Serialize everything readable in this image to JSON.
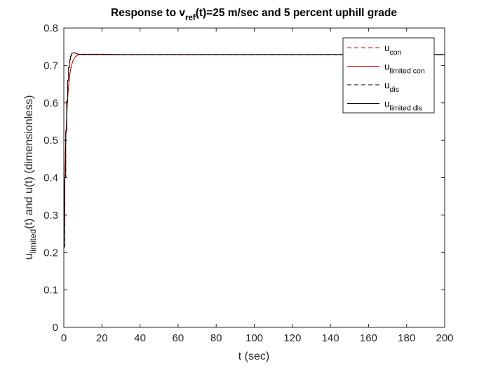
{
  "chart_data": {
    "type": "line",
    "title": {
      "prefix": "Response to v",
      "sub": "ref",
      "suffix": "(t)=25 m/sec and  5 percent uphill grade"
    },
    "xlabel": "t (sec)",
    "ylabel": {
      "prefix": "u",
      "sub": "limited",
      "suffix": "(t) and u(t) (dimensionless)"
    },
    "xlim": [
      0,
      200
    ],
    "ylim": [
      0,
      0.8
    ],
    "xticks": [
      0,
      20,
      40,
      60,
      80,
      100,
      120,
      140,
      160,
      180,
      200
    ],
    "xtick_labels": [
      "0",
      "20",
      "40",
      "60",
      "80",
      "100",
      "120",
      "140",
      "160",
      "180",
      "200"
    ],
    "yticks": [
      0,
      0.1,
      0.2,
      0.3,
      0.4,
      0.5,
      0.6,
      0.7,
      0.8
    ],
    "ytick_labels": [
      "0",
      "0.1",
      "0.2",
      "0.3",
      "0.4",
      "0.5",
      "0.6",
      "0.7",
      "0.8"
    ],
    "grid": false,
    "legend_position": "top-right",
    "series": [
      {
        "name": {
          "base": "u",
          "sub": "con"
        },
        "color": "#cc0000",
        "dash": "dashed",
        "x": [
          0,
          0.5,
          1,
          1.5,
          2,
          2.5,
          3,
          3.5,
          4,
          5,
          6,
          7,
          8,
          10,
          12,
          15,
          20,
          30,
          200
        ],
        "y": [
          0.255,
          0.4,
          0.5,
          0.565,
          0.61,
          0.645,
          0.67,
          0.687,
          0.7,
          0.715,
          0.723,
          0.727,
          0.729,
          0.73,
          0.73,
          0.73,
          0.73,
          0.729,
          0.729
        ]
      },
      {
        "name": {
          "base": "u",
          "sub": "limited con"
        },
        "color": "#cc0000",
        "dash": "solid",
        "x": [
          0,
          0.5,
          1,
          1.5,
          2,
          2.5,
          3,
          3.5,
          4,
          5,
          6,
          7,
          8,
          10,
          12,
          15,
          20,
          30,
          200
        ],
        "y": [
          0.255,
          0.4,
          0.5,
          0.565,
          0.61,
          0.645,
          0.67,
          0.687,
          0.7,
          0.715,
          0.723,
          0.727,
          0.729,
          0.73,
          0.73,
          0.73,
          0.73,
          0.729,
          0.729
        ]
      },
      {
        "name": {
          "base": "u",
          "sub": "dis"
        },
        "color": "#000000",
        "dash": "dashed",
        "x": [
          0,
          0.5,
          0.5,
          1,
          1,
          1.5,
          1.5,
          2,
          2,
          2.5,
          2.5,
          3,
          3,
          3.5,
          3.5,
          4,
          4,
          5,
          6,
          7,
          8,
          10,
          15,
          200
        ],
        "y": [
          0.215,
          0.215,
          0.4,
          0.4,
          0.525,
          0.525,
          0.605,
          0.605,
          0.66,
          0.66,
          0.695,
          0.695,
          0.715,
          0.715,
          0.725,
          0.725,
          0.731,
          0.734,
          0.733,
          0.731,
          0.73,
          0.729,
          0.729,
          0.729
        ]
      },
      {
        "name": {
          "base": "u",
          "sub": "limited dis"
        },
        "color": "#000000",
        "dash": "solid",
        "x": [
          0,
          0.5,
          0.5,
          1,
          1,
          1.5,
          1.5,
          2,
          2,
          2.5,
          2.5,
          3,
          3,
          3.5,
          3.5,
          4,
          4,
          5,
          6,
          7,
          8,
          10,
          15,
          200
        ],
        "y": [
          0.215,
          0.215,
          0.4,
          0.4,
          0.525,
          0.525,
          0.605,
          0.605,
          0.66,
          0.66,
          0.695,
          0.695,
          0.715,
          0.715,
          0.725,
          0.725,
          0.731,
          0.734,
          0.733,
          0.731,
          0.73,
          0.729,
          0.729,
          0.729
        ]
      }
    ]
  }
}
